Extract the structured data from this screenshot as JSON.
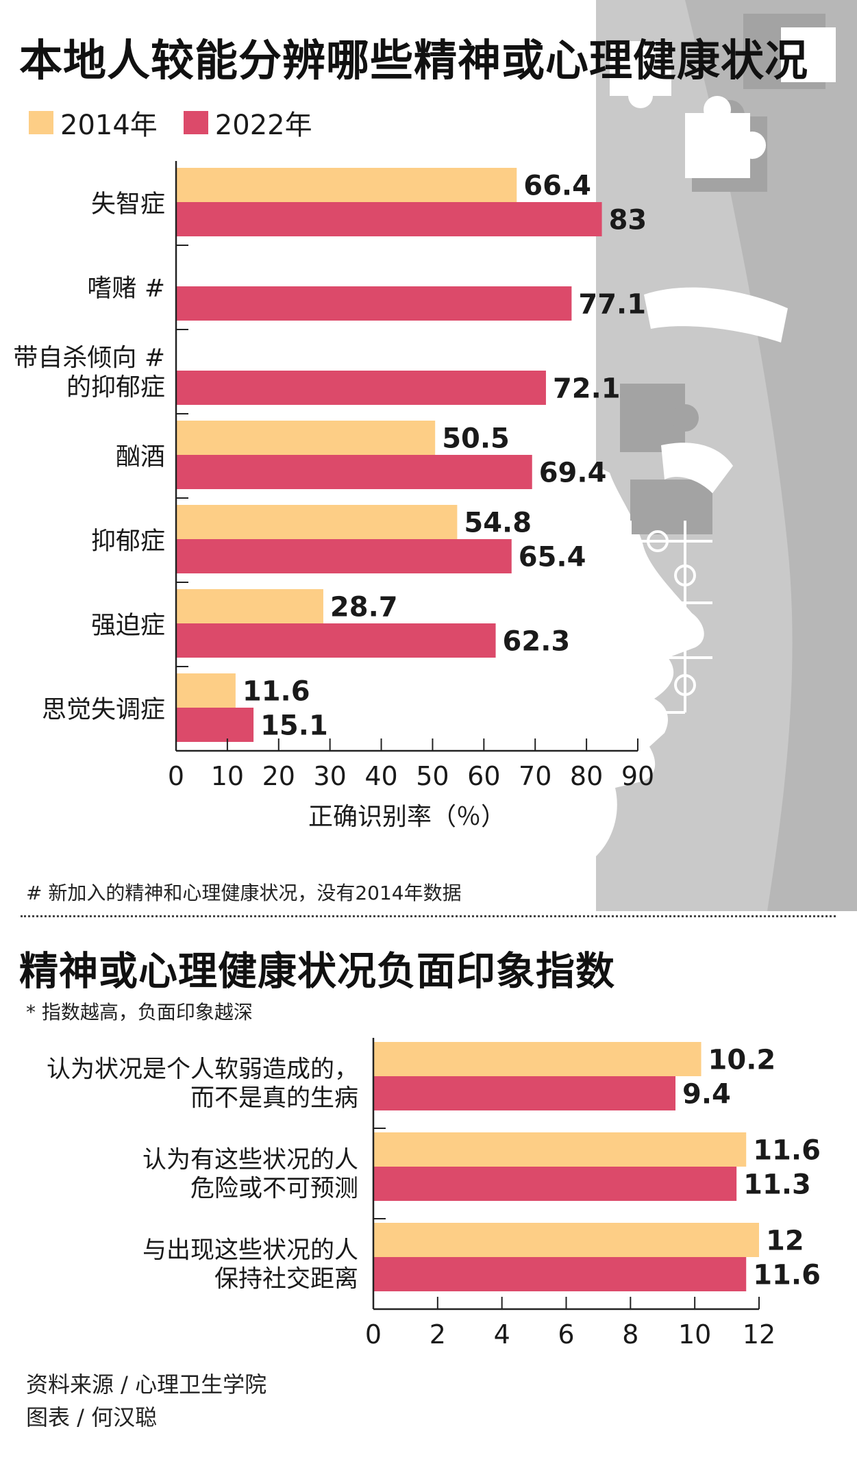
{
  "colors": {
    "y2014": "#fdce86",
    "y2022": "#dc4a6a",
    "axis": "#222222",
    "decor_gray": "#c9c9c9",
    "decor_dark": "#a3a3a3"
  },
  "title1": "本地人较能分辨哪些精神或心理健康状况",
  "legend": [
    {
      "label": "2014年",
      "color": "#fdce86"
    },
    {
      "label": "2022年",
      "color": "#dc4a6a"
    }
  ],
  "footnote1": "# 新加入的精神和心理健康状况，没有2014年数据",
  "title2": "精神或心理健康状况负面印象指数",
  "note2": "* 指数越高，负面印象越深",
  "source": "资料来源 / 心理卫生学院",
  "credit": "图表 / 何汉聪",
  "chart_data": [
    {
      "type": "bar",
      "orientation": "horizontal",
      "categories": [
        [
          "失智症"
        ],
        [
          "嗜赌 #"
        ],
        [
          "带自杀倾向 #",
          "的抑郁症"
        ],
        [
          "酗酒"
        ],
        [
          "抑郁症"
        ],
        [
          "强迫症"
        ],
        [
          "思觉失调症"
        ]
      ],
      "series": [
        {
          "name": "2014年",
          "values": [
            66.4,
            null,
            null,
            50.5,
            54.8,
            28.7,
            11.6
          ]
        },
        {
          "name": "2022年",
          "values": [
            83,
            77.1,
            72.1,
            69.4,
            65.4,
            62.3,
            15.1
          ]
        }
      ],
      "xlim": [
        0,
        90
      ],
      "xticks": [
        0,
        10,
        20,
        30,
        40,
        50,
        60,
        70,
        80,
        90
      ],
      "xlabel": "正确识别率（％）",
      "grid": false,
      "legend_position": "top-left"
    },
    {
      "type": "bar",
      "orientation": "horizontal",
      "categories": [
        [
          "认为状况是个人软弱造成的，",
          "而不是真的生病"
        ],
        [
          "认为有这些状况的人",
          "危险或不可预测"
        ],
        [
          "与出现这些状况的人",
          "保持社交距离"
        ]
      ],
      "series": [
        {
          "name": "2014年",
          "values": [
            10.2,
            11.6,
            12
          ]
        },
        {
          "name": "2022年",
          "values": [
            9.4,
            11.3,
            11.6
          ]
        }
      ],
      "xlim": [
        0,
        12
      ],
      "xticks": [
        0,
        2,
        4,
        6,
        8,
        10,
        12
      ],
      "xlabel": "",
      "grid": false
    }
  ]
}
